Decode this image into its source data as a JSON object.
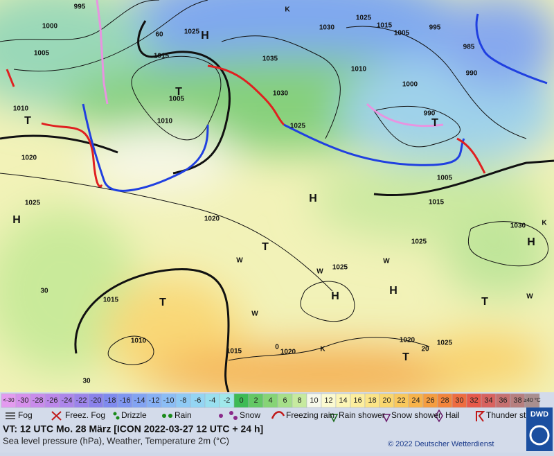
{
  "map": {
    "labels": [
      "995",
      "1000",
      "1005",
      "1010",
      "1020",
      "1025",
      "H",
      "T",
      "1015",
      "1025",
      "H",
      "1035",
      "1030",
      "1030",
      "1025",
      "1015",
      "1005",
      "995",
      "985",
      "990",
      "1000",
      "990",
      "T",
      "1010",
      "1025",
      "1005",
      "T",
      "1010",
      "1020",
      "T",
      "H",
      "1005",
      "1015",
      "1025",
      "1030",
      "H",
      "1025",
      "H",
      "H",
      "T",
      "1015",
      "T",
      "1010",
      "1015",
      "1020",
      "1020",
      "T",
      "1025",
      "60",
      "30",
      "30",
      "20",
      "0",
      "K",
      "W",
      "W",
      "W",
      "W",
      "K",
      "K",
      "W"
    ]
  },
  "legend": {
    "scale": [
      {
        "label": "<-30",
        "color": "#e39bef"
      },
      {
        "label": "-30",
        "color": "#d690ec"
      },
      {
        "label": "-28",
        "color": "#c98ceb"
      },
      {
        "label": "-26",
        "color": "#bc88ea"
      },
      {
        "label": "-24",
        "color": "#ad86ea"
      },
      {
        "label": "-22",
        "color": "#9c84ea"
      },
      {
        "label": "-20",
        "color": "#8a82ea"
      },
      {
        "label": "-18",
        "color": "#7f8aee"
      },
      {
        "label": "-16",
        "color": "#7f96f0"
      },
      {
        "label": "-14",
        "color": "#82a3f2"
      },
      {
        "label": "-12",
        "color": "#86b0f4"
      },
      {
        "label": "-10",
        "color": "#8bbdf5"
      },
      {
        "label": "-8",
        "color": "#8fcaf5"
      },
      {
        "label": "-6",
        "color": "#94d5f3"
      },
      {
        "label": "-4",
        "color": "#99dfef"
      },
      {
        "label": "-2",
        "color": "#a0e8ea"
      },
      {
        "label": "0",
        "color": "#3dbb55"
      },
      {
        "label": "2",
        "color": "#64c865"
      },
      {
        "label": "4",
        "color": "#86d476"
      },
      {
        "label": "6",
        "color": "#a6df89"
      },
      {
        "label": "8",
        "color": "#c6ea9f"
      },
      {
        "label": "10",
        "color": "#f6f8ea"
      },
      {
        "label": "12",
        "color": "#fbfad0"
      },
      {
        "label": "14",
        "color": "#fcf5b6"
      },
      {
        "label": "16",
        "color": "#fcee9e"
      },
      {
        "label": "18",
        "color": "#fbe487"
      },
      {
        "label": "20",
        "color": "#fad76f"
      },
      {
        "label": "22",
        "color": "#f9c85d"
      },
      {
        "label": "24",
        "color": "#f7b34b"
      },
      {
        "label": "26",
        "color": "#f59d40"
      },
      {
        "label": "28",
        "color": "#f2843c"
      },
      {
        "label": "30",
        "color": "#ee6c40"
      },
      {
        "label": "32",
        "color": "#e6594b"
      },
      {
        "label": "34",
        "color": "#d8625f"
      },
      {
        "label": "36",
        "color": "#c67070"
      },
      {
        "label": "38",
        "color": "#b77f7f"
      },
      {
        "label": "≥40 °C",
        "color": "#a98f8f"
      }
    ],
    "weather": [
      "Fog",
      "Freez. Fog",
      "Drizzle",
      "Rain",
      "Snow",
      "Freezing rain",
      "Rain shower",
      "Snow shower",
      "Hail",
      "Thunder storm"
    ]
  },
  "footer": {
    "valid": "VT: 12 UTC Mo.  28 März [ICON 2022-03-27  12 UTC + 24 h]",
    "desc": "Sea level pressure (hPa), Weather, Temperature 2m (°C)",
    "copyright": "© 2022 Deutscher Wetterdienst",
    "logo": "DWD"
  }
}
